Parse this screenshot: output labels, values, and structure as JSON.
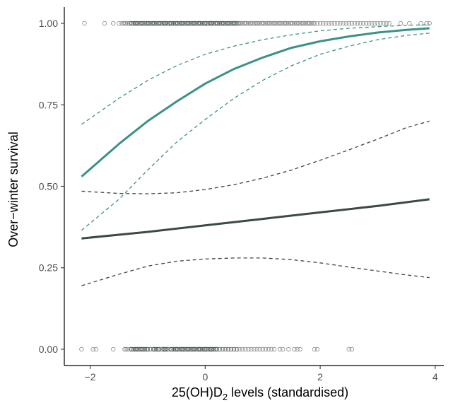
{
  "chart_data": {
    "type": "line",
    "title": "",
    "xlabel": "25(OH)D",
    "xlabel_subscript": "2",
    "xlabel_suffix": " levels (standardised)",
    "ylabel": "Over−winter survival",
    "xlim": [
      -2.45,
      4.15
    ],
    "ylim": [
      -0.05,
      1.05
    ],
    "x_ticks": [
      -2,
      0,
      2,
      4
    ],
    "x_tick_labels": [
      "−2",
      "0",
      "2",
      "4"
    ],
    "y_ticks": [
      0,
      0.25,
      0.5,
      0.75,
      1
    ],
    "y_tick_labels": [
      "0.00",
      "0.25",
      "0.50",
      "0.75",
      "1.00"
    ],
    "grid": false,
    "legend": "none",
    "colors": {
      "teal": "#3a9287",
      "dark": "#3e4846",
      "points": "#8a8a8a",
      "points_dense": "#555b5b"
    },
    "series": [
      {
        "style": "solid",
        "color_key": "teal",
        "x": [
          -2.15,
          -1.5,
          -1.0,
          -0.5,
          0.0,
          0.5,
          1.0,
          1.5,
          2.0,
          2.5,
          3.0,
          3.5,
          3.9
        ],
        "y": [
          0.53,
          0.63,
          0.7,
          0.76,
          0.815,
          0.86,
          0.895,
          0.925,
          0.945,
          0.96,
          0.972,
          0.98,
          0.985
        ]
      },
      {
        "style": "dashed",
        "color_key": "teal",
        "x": [
          -2.15,
          -1.5,
          -1.0,
          -0.5,
          0.0,
          0.5,
          1.0,
          1.5,
          2.0,
          2.5,
          3.0,
          3.5,
          3.9
        ],
        "y": [
          0.69,
          0.77,
          0.825,
          0.87,
          0.905,
          0.93,
          0.95,
          0.965,
          0.977,
          0.985,
          0.99,
          0.994,
          0.996
        ]
      },
      {
        "style": "dashed",
        "color_key": "teal",
        "x": [
          -2.15,
          -1.5,
          -1.0,
          -0.5,
          0.0,
          0.5,
          1.0,
          1.5,
          2.0,
          2.5,
          3.0,
          3.5,
          3.9
        ],
        "y": [
          0.365,
          0.46,
          0.55,
          0.635,
          0.705,
          0.77,
          0.825,
          0.87,
          0.905,
          0.93,
          0.95,
          0.963,
          0.97
        ]
      },
      {
        "style": "solid",
        "color_key": "dark",
        "x": [
          -2.15,
          -1.0,
          0.0,
          1.0,
          2.0,
          3.0,
          3.9
        ],
        "y": [
          0.34,
          0.36,
          0.38,
          0.4,
          0.42,
          0.44,
          0.46
        ]
      },
      {
        "style": "dashed",
        "color_key": "dark",
        "x": [
          -2.15,
          -1.5,
          -1.0,
          -0.5,
          0.0,
          0.5,
          1.0,
          1.5,
          2.0,
          2.5,
          3.0,
          3.5,
          3.9
        ],
        "y": [
          0.485,
          0.478,
          0.477,
          0.48,
          0.49,
          0.505,
          0.525,
          0.55,
          0.58,
          0.612,
          0.645,
          0.68,
          0.7
        ]
      },
      {
        "style": "dashed",
        "color_key": "dark",
        "x": [
          -2.15,
          -1.5,
          -1.0,
          -0.5,
          0.0,
          0.5,
          1.0,
          1.5,
          2.0,
          2.5,
          3.0,
          3.5,
          3.9
        ],
        "y": [
          0.195,
          0.23,
          0.255,
          0.27,
          0.277,
          0.28,
          0.28,
          0.275,
          0.265,
          0.252,
          0.24,
          0.228,
          0.22
        ]
      }
    ],
    "points_y1": [
      -2.1,
      -1.75,
      -1.6,
      -1.5,
      -1.45,
      -1.42,
      -1.4,
      -1.38,
      -1.35,
      -1.32,
      -1.3,
      -1.28,
      -1.25,
      -1.22,
      -1.2,
      -1.18,
      -1.15,
      -1.12,
      -1.1,
      -1.08,
      -1.05,
      -1.02,
      -1.0,
      -0.98,
      -0.95,
      -0.92,
      -0.9,
      -0.88,
      -0.85,
      -0.82,
      -0.8,
      -0.78,
      -0.75,
      -0.72,
      -0.7,
      -0.68,
      -0.65,
      -0.62,
      -0.6,
      -0.58,
      -0.55,
      -0.52,
      -0.5,
      -0.48,
      -0.45,
      -0.42,
      -0.4,
      -0.38,
      -0.35,
      -0.32,
      -0.3,
      -0.28,
      -0.25,
      -0.22,
      -0.2,
      -0.18,
      -0.15,
      -0.12,
      -0.1,
      -0.08,
      -0.05,
      -0.02,
      0.0,
      0.02,
      0.05,
      0.08,
      0.1,
      0.12,
      0.15,
      0.18,
      0.2,
      0.22,
      0.25,
      0.28,
      0.3,
      0.32,
      0.35,
      0.38,
      0.4,
      0.42,
      0.45,
      0.48,
      0.5,
      0.52,
      0.55,
      0.58,
      0.6,
      0.62,
      0.65,
      0.68,
      0.7,
      0.72,
      0.75,
      0.78,
      0.8,
      0.82,
      0.85,
      0.88,
      0.9,
      0.92,
      0.95,
      0.98,
      1.0,
      1.02,
      1.05,
      1.08,
      1.1,
      1.12,
      1.15,
      1.18,
      1.2,
      1.22,
      1.25,
      1.28,
      1.3,
      1.32,
      1.35,
      1.38,
      1.4,
      1.42,
      1.45,
      1.48,
      1.5,
      1.52,
      1.55,
      1.58,
      1.6,
      1.62,
      1.65,
      1.68,
      1.7,
      1.72,
      1.75,
      1.78,
      1.8,
      1.82,
      1.85,
      1.88,
      1.9,
      1.95,
      2.0,
      2.05,
      2.1,
      2.15,
      2.2,
      2.25,
      2.3,
      2.35,
      2.4,
      2.45,
      2.5,
      2.55,
      2.6,
      2.65,
      2.7,
      2.75,
      2.8,
      2.85,
      2.9,
      2.95,
      3.0,
      3.05,
      3.1,
      3.15,
      3.2,
      3.4,
      3.55,
      3.75,
      3.85,
      3.9
    ],
    "points_y0": [
      -2.15,
      -1.95,
      -1.9,
      -1.6,
      -1.4,
      -1.38,
      -1.35,
      -1.3,
      -1.28,
      -1.25,
      -1.22,
      -1.2,
      -1.18,
      -1.15,
      -1.12,
      -1.1,
      -1.08,
      -1.05,
      -1.02,
      -1.0,
      -0.95,
      -0.9,
      -0.88,
      -0.85,
      -0.82,
      -0.8,
      -0.75,
      -0.72,
      -0.7,
      -0.68,
      -0.65,
      -0.6,
      -0.58,
      -0.55,
      -0.52,
      -0.5,
      -0.48,
      -0.45,
      -0.42,
      -0.4,
      -0.38,
      -0.35,
      -0.32,
      -0.3,
      -0.28,
      -0.25,
      -0.22,
      -0.2,
      -0.18,
      -0.15,
      -0.12,
      -0.1,
      -0.08,
      -0.05,
      -0.02,
      0.0,
      0.02,
      0.05,
      0.08,
      0.1,
      0.12,
      0.15,
      0.18,
      0.2,
      0.25,
      0.3,
      0.35,
      0.4,
      0.45,
      0.5,
      0.55,
      0.6,
      0.65,
      0.7,
      0.75,
      0.8,
      0.85,
      0.9,
      0.95,
      1.0,
      1.05,
      1.1,
      1.15,
      1.2,
      1.3,
      1.35,
      1.45,
      1.55,
      1.6,
      1.65,
      1.9,
      1.95,
      2.5,
      2.55
    ]
  }
}
